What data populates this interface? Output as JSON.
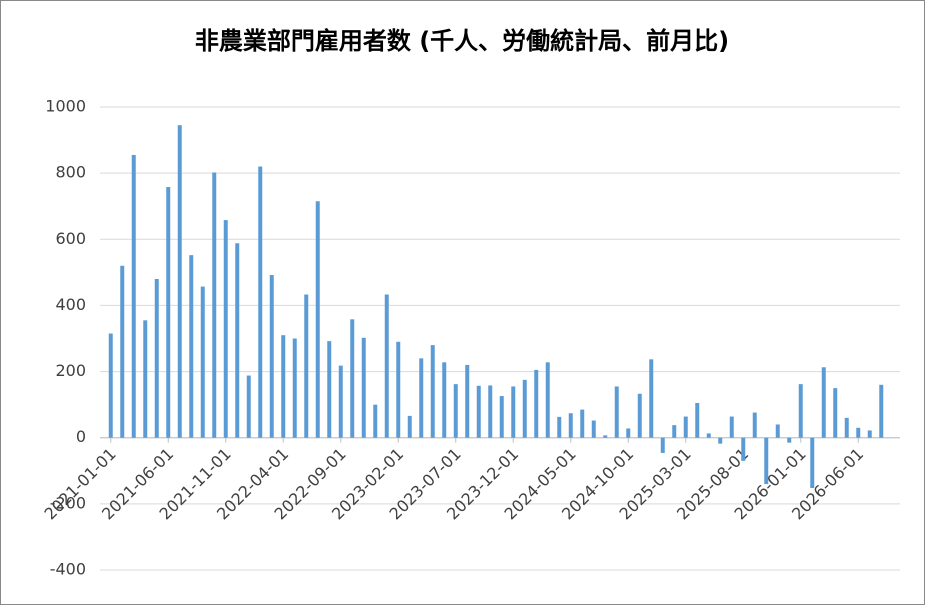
{
  "chart_data": {
    "type": "bar",
    "title": "非農業部門雇用者数 (千人、労働統計局、前月比)",
    "categories": [
      "2021-01-01",
      null,
      null,
      null,
      null,
      "2021-06-01",
      null,
      null,
      null,
      null,
      "2021-11-01",
      null,
      null,
      null,
      null,
      "2022-04-01",
      null,
      null,
      null,
      null,
      "2022-09-01",
      null,
      null,
      null,
      null,
      "2023-02-01",
      null,
      null,
      null,
      null,
      "2023-07-01",
      null,
      null,
      null,
      null,
      "2023-12-01",
      null,
      null,
      null,
      null,
      "2024-05-01",
      null,
      null,
      null,
      null,
      "2024-10-01",
      null,
      null,
      null,
      null,
      "2025-03-01",
      null,
      null,
      null,
      null,
      "2025-08-01",
      null,
      null,
      null,
      null,
      "2026-01-01",
      null,
      null,
      null,
      null,
      "2026-06-01",
      null,
      null
    ],
    "values": [
      315,
      520,
      855,
      355,
      480,
      758,
      945,
      552,
      457,
      802,
      658,
      588,
      188,
      820,
      492,
      310,
      300,
      433,
      715,
      292,
      218,
      358,
      302,
      100,
      433,
      290,
      66,
      240,
      280,
      228,
      162,
      220,
      157,
      158,
      126,
      155,
      175,
      205,
      228,
      63,
      74,
      85,
      52,
      7,
      155,
      28,
      133,
      237,
      -46,
      38,
      64,
      105,
      13,
      -18,
      64,
      -70,
      76,
      -140,
      40,
      -15,
      162,
      -152,
      213,
      150,
      60,
      30,
      22,
      160
    ],
    "color": "#5b9bd5",
    "ylim": [
      -400,
      1000
    ],
    "yticks": [
      -400,
      -200,
      0,
      200,
      400,
      600,
      800,
      1000
    ],
    "grid": true
  }
}
